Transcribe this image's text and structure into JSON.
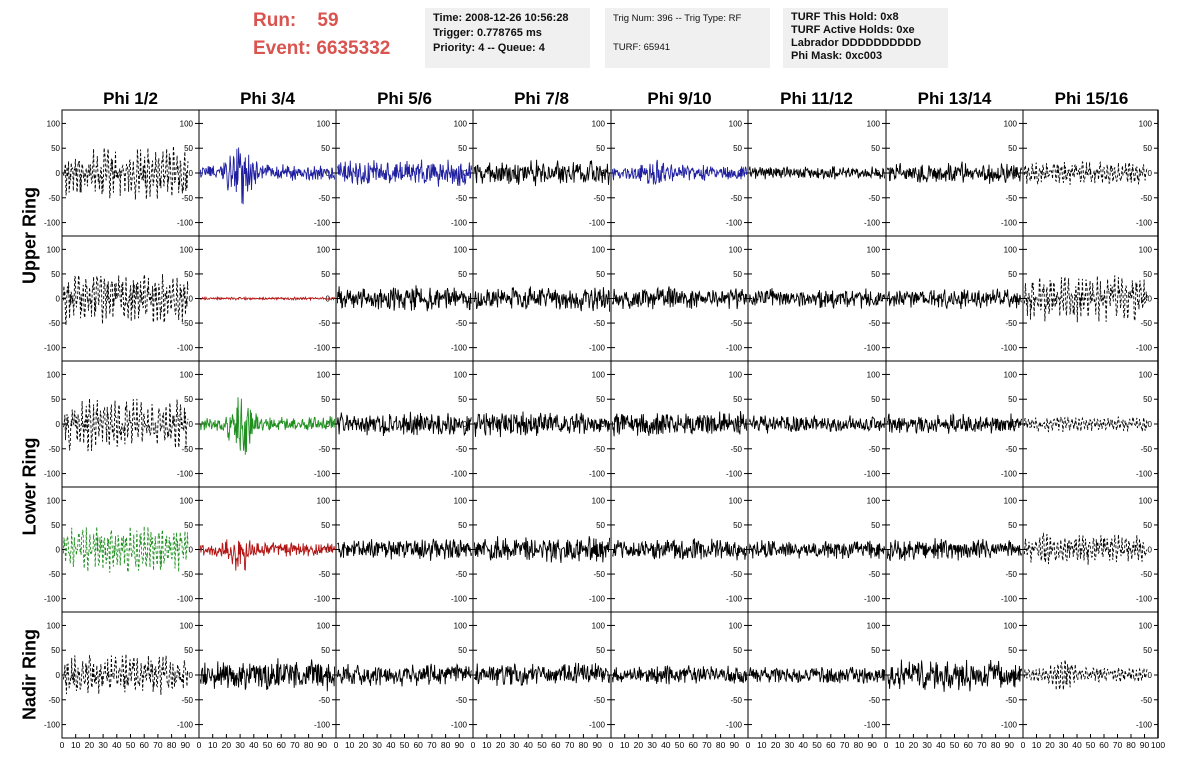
{
  "header": {
    "run_label": "Run:",
    "run_value": "59",
    "event_label": "Event:",
    "event_value": "6635332",
    "time": "Time: 2008-12-26 10:56:28",
    "trigger": "Trigger: 0.778765 ms",
    "priority": "Priority: 4 -- Queue: 4",
    "trig_num": "Trig Num: 396 -- Trig Type: RF",
    "turf": "TURF: 65941",
    "turf_this_hold": "TURF This Hold: 0x8",
    "turf_active_holds": "TURF Active Holds: 0xe",
    "labrador": "Labrador DDDDDDDDDD",
    "phi_mask": "Phi Mask: 0xc003"
  },
  "chart_data": {
    "type": "line",
    "columns": [
      "Phi 1/2",
      "Phi 3/4",
      "Phi 5/6",
      "Phi 7/8",
      "Phi 9/10",
      "Phi 11/12",
      "Phi 13/14",
      "Phi 15/16"
    ],
    "rows": [
      "Upper Ring",
      "Lower Ring",
      "Nadir Ring"
    ],
    "xlim": [
      0,
      100
    ],
    "ylim": [
      -115,
      115
    ],
    "x_ticks": [
      0,
      10,
      20,
      30,
      40,
      50,
      60,
      70,
      80,
      90,
      100
    ],
    "y_ticks": [
      -100,
      -50,
      0,
      50,
      100
    ],
    "colors": {
      "black": "#000000",
      "blue": "#1f1fa0",
      "red": "#b31414",
      "green": "#1f8f1f"
    },
    "panels": [
      [
        "dash:50",
        "blue:35:95",
        "blue:28",
        "black:28",
        "blue:32:40",
        "black:15",
        "black:25",
        "dash:22"
      ],
      [
        "dash:50",
        "red:3",
        "black:28",
        "black:28",
        "black:25",
        "black:22",
        "black:22",
        "dash:45"
      ],
      [
        "dash:50",
        "green:30:80",
        "black:28",
        "black:28",
        "black:28",
        "black:20",
        "black:22",
        "dash:15"
      ],
      [
        "greendash:45",
        "red:30:55",
        "black:25",
        "black:28",
        "black:25",
        "black:22",
        "black:25",
        "dash:30"
      ],
      [
        "dash:40",
        "black:35",
        "black:25",
        "black:25",
        "black:22",
        "black:20",
        "black:35",
        "dash:25:45"
      ]
    ]
  }
}
